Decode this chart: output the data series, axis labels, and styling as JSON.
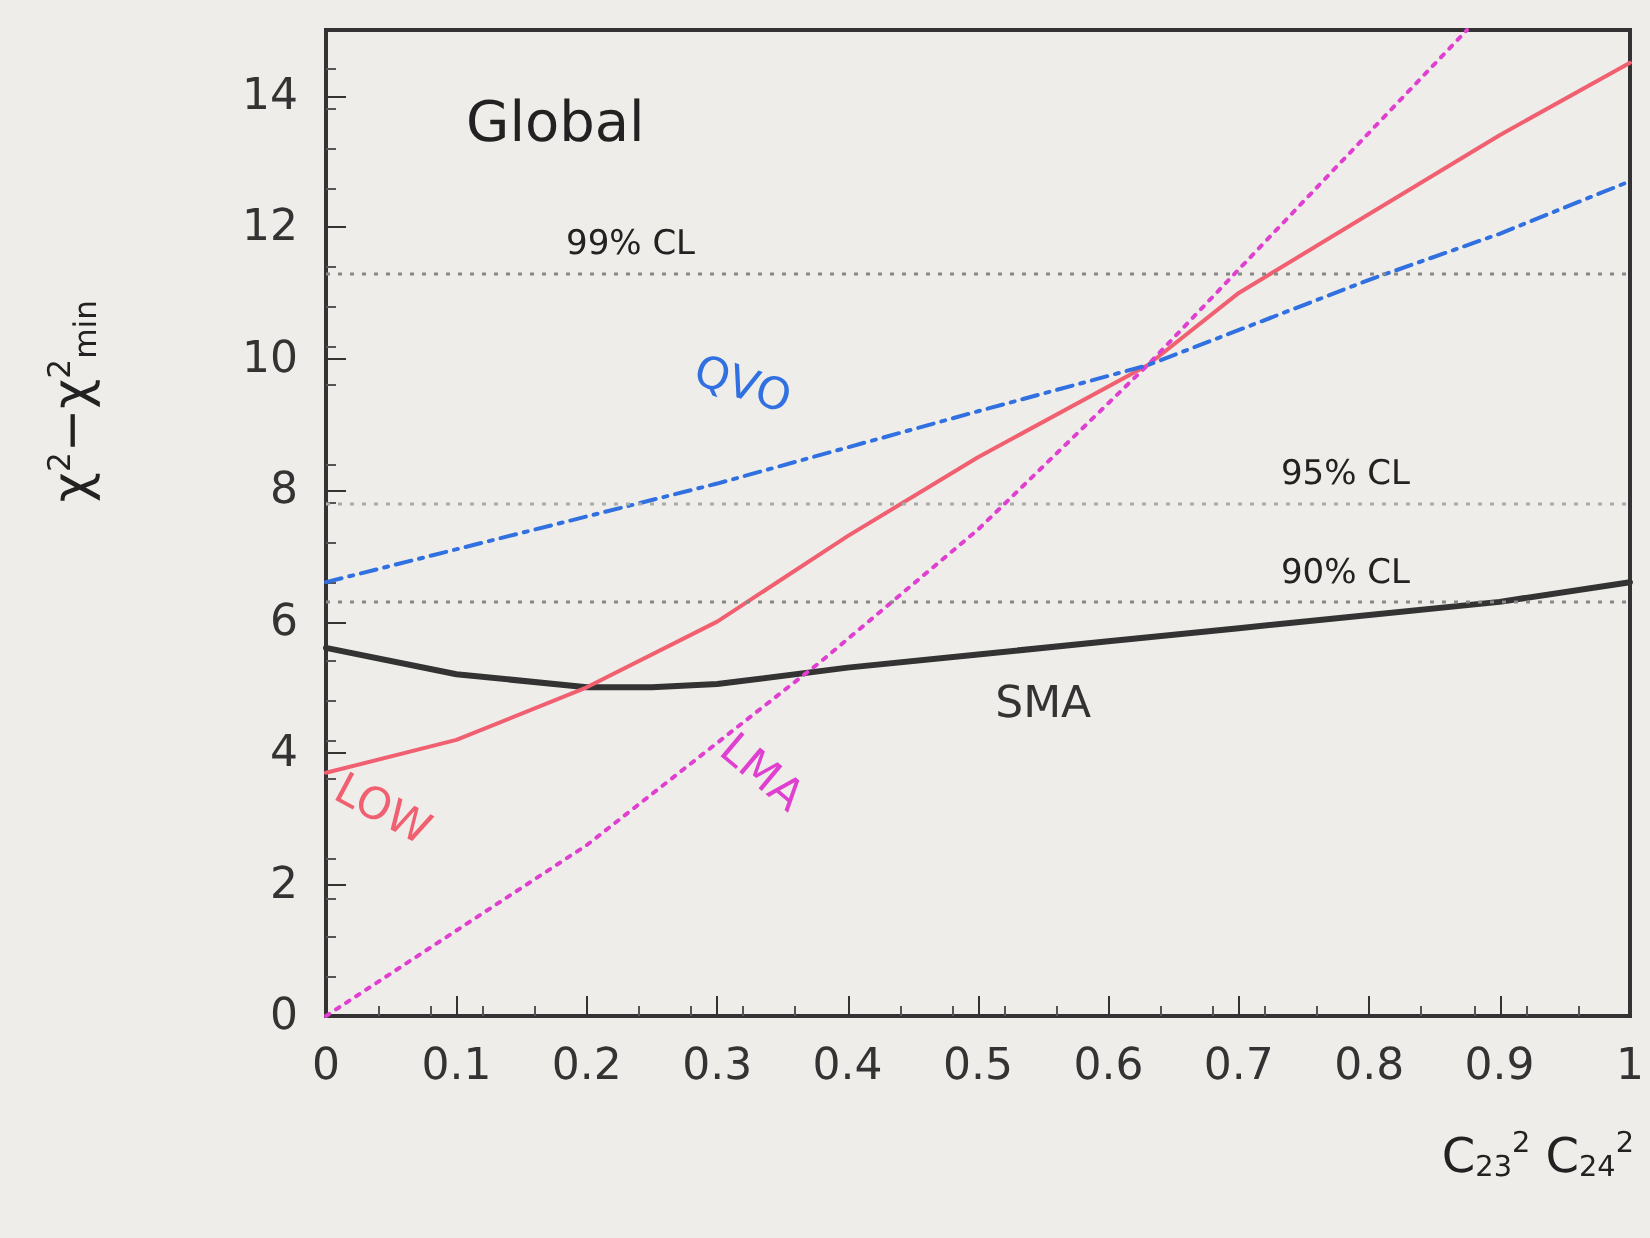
{
  "chart_data": {
    "type": "line",
    "title": "Global",
    "xlabel": "C$_{23}$$^{2}$ C$_{24}$$^{2}$",
    "ylabel": "χ$^{2}$−χ$^{2}$$_{min}$",
    "xlim": [
      0,
      1
    ],
    "ylim": [
      0,
      15
    ],
    "xticks": [
      0,
      0.1,
      0.2,
      0.3,
      0.4,
      0.5,
      0.6,
      0.7,
      0.8,
      0.9,
      1
    ],
    "yticks": [
      0,
      2,
      4,
      6,
      8,
      10,
      12,
      14
    ],
    "grid": false,
    "legend": false,
    "marker": "none",
    "series": [
      {
        "name": "SMA",
        "color": "#333333",
        "line_style": "solid",
        "x": [
          0,
          0.1,
          0.2,
          0.25,
          0.3,
          0.4,
          0.5,
          0.6,
          0.7,
          0.8,
          0.9,
          1
        ],
        "values": [
          5.6,
          5.2,
          5.0,
          5.0,
          5.05,
          5.3,
          5.5,
          5.7,
          5.9,
          6.1,
          6.3,
          6.6
        ]
      },
      {
        "name": "LOW",
        "color": "#f06070",
        "line_style": "solid",
        "x": [
          0,
          0.1,
          0.2,
          0.3,
          0.4,
          0.5,
          0.63,
          0.7,
          0.8,
          0.9,
          1
        ],
        "values": [
          3.7,
          4.2,
          5.0,
          6.0,
          7.3,
          8.5,
          9.9,
          11.0,
          12.2,
          13.4,
          14.5
        ]
      },
      {
        "name": "LMA",
        "color": "#e040d0",
        "line_style": "dotted",
        "x": [
          0,
          0.2,
          0.38,
          0.5,
          0.63,
          0.75,
          0.875
        ],
        "values": [
          0,
          2.6,
          5.4,
          7.4,
          9.9,
          12.4,
          15
        ]
      },
      {
        "name": "QVO",
        "color": "#3070e0",
        "line_style": "dashed",
        "x": [
          0,
          0.3,
          0.5,
          0.63,
          0.8,
          0.9,
          1
        ],
        "values": [
          6.6,
          8.1,
          9.2,
          9.9,
          11.2,
          11.9,
          12.7
        ]
      }
    ],
    "ref_lines": [
      {
        "axis": "y",
        "value": 11.3,
        "label": "99% CL",
        "color": "#888888",
        "line_style": "dotted"
      },
      {
        "axis": "y",
        "value": 7.8,
        "label": "95% CL",
        "color": "#aaaaaa",
        "line_style": "dotted"
      },
      {
        "axis": "y",
        "value": 6.3,
        "label": "90% CL",
        "color": "#888888",
        "line_style": "dotted"
      }
    ]
  }
}
